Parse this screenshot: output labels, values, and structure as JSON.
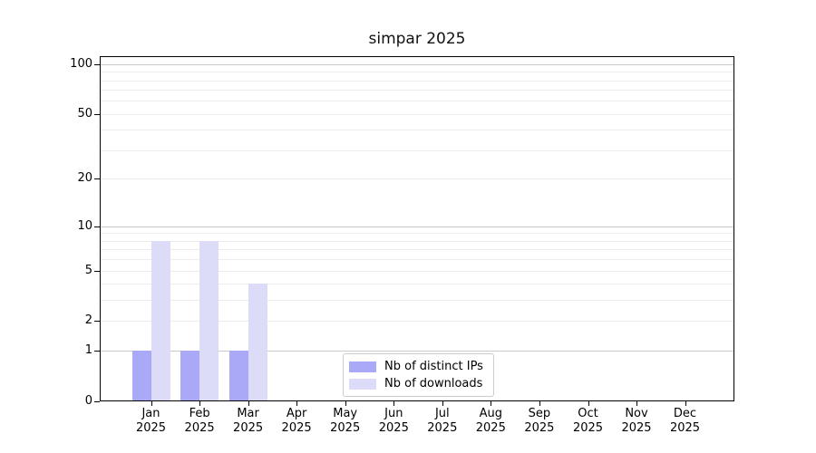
{
  "figure": {
    "title": "simpar 2025"
  },
  "chart_data": {
    "type": "bar",
    "title": "simpar 2025",
    "xlabel": "",
    "ylabel": "",
    "scale": "log1p",
    "grid": "both",
    "categories": [
      "Jan",
      "Feb",
      "Mar",
      "Apr",
      "May",
      "Jun",
      "Jul",
      "Aug",
      "Sep",
      "Oct",
      "Nov",
      "Dec"
    ],
    "category_year": "2025",
    "series": [
      {
        "name": "Nb of distinct IPs",
        "color": "#a9a9f7",
        "values": [
          1,
          1,
          1,
          0,
          0,
          0,
          0,
          0,
          0,
          0,
          0,
          0
        ]
      },
      {
        "name": "Nb of downloads",
        "color": "#dcdcf8",
        "values": [
          8,
          8,
          4,
          0,
          0,
          0,
          0,
          0,
          0,
          0,
          0,
          0
        ]
      }
    ],
    "y_axis": {
      "ticks": [
        0,
        1,
        2,
        5,
        10,
        20,
        50,
        100
      ],
      "major_gridlines": [
        1,
        10,
        100
      ],
      "minor_gridlines": [
        2,
        3,
        4,
        5,
        6,
        7,
        8,
        9,
        20,
        30,
        40,
        50,
        60,
        70,
        80,
        90
      ],
      "range_top": 111.5
    },
    "legend": {
      "position": "bottom-center-inside",
      "entries": [
        "Nb of distinct IPs",
        "Nb of downloads"
      ]
    },
    "colors": {
      "major_grid": "#c9c9c9",
      "minor_grid": "#ececec",
      "axis": "#000000",
      "text": "#000000"
    }
  }
}
